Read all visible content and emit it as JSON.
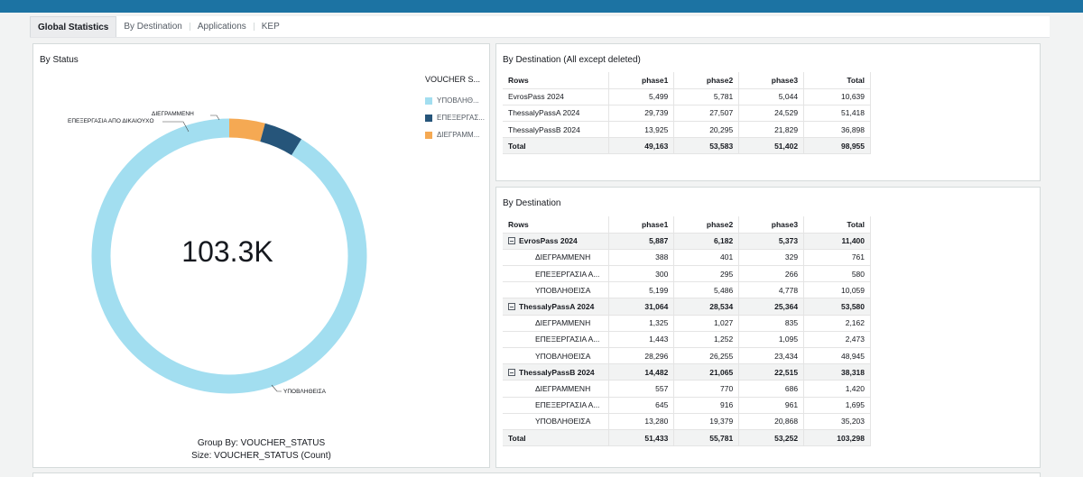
{
  "tabs": [
    "Global Statistics",
    "By Destination",
    "Applications",
    "KEP"
  ],
  "status_panel": {
    "title": "By Status",
    "center_value": "103.3K",
    "legend_title": "VOUCHER S...",
    "legend": [
      {
        "label": "ΥΠΟΒΛΗΘ...",
        "color": "#a2def0"
      },
      {
        "label": "ΕΠΕΞΕΡΓΑΣ...",
        "color": "#26557a"
      },
      {
        "label": "ΔΙΕΓΡΑΜΜ...",
        "color": "#f5a953"
      }
    ],
    "callouts": {
      "deleted": "ΔΙΕΓΡΑΜΜΕΝΗ",
      "processing": "ΕΠΕΞΕΡΓΑΣΙΑ ΑΠΟ ΔΙΚΑΙΟΥΧΟ",
      "submitted": "ΥΠΟΒΛΗΘΕΙΣΑ"
    },
    "footer": [
      "Group By: VOUCHER_STATUS",
      "Size: VOUCHER_STATUS (Count)"
    ]
  },
  "chart_data": {
    "type": "pie",
    "categories": [
      "ΥΠΟΒΛΗΘΕΙΣΑ",
      "ΕΠΕΞΕΡΓΑΣΙΑ ΑΠΟ ΔΙΚΑΙΟΥΧΟ",
      "ΔΙΕΓΡΑΜΜΕΝΗ"
    ],
    "values": [
      94207,
      4748,
      4343
    ],
    "colors": [
      "#a2def0",
      "#26557a",
      "#f5a953"
    ],
    "title": "By Status"
  },
  "table_simple": {
    "title": "By Destination (All except deleted)",
    "headers": [
      "Rows",
      "phase1",
      "phase2",
      "phase3",
      "Total"
    ],
    "rows": [
      [
        "EvrosPass 2024",
        "5,499",
        "5,781",
        "5,044",
        "10,639"
      ],
      [
        "ThessalyPassA 2024",
        "29,739",
        "27,507",
        "24,529",
        "51,418"
      ],
      [
        "ThessalyPassB 2024",
        "13,925",
        "20,295",
        "21,829",
        "36,898"
      ]
    ],
    "total": [
      "Total",
      "49,163",
      "53,583",
      "51,402",
      "98,955"
    ]
  },
  "table_pivot": {
    "title": "By Destination",
    "headers": [
      "Rows",
      "phase1",
      "phase2",
      "phase3",
      "Total"
    ],
    "groups": [
      {
        "label": "EvrosPass 2024",
        "values": [
          "5,887",
          "6,182",
          "5,373",
          "11,400"
        ],
        "children": [
          [
            "ΔΙΕΓΡΑΜΜΕΝΗ",
            "388",
            "401",
            "329",
            "761"
          ],
          [
            "ΕΠΕΞΕΡΓΑΣΙΑ Α...",
            "300",
            "295",
            "266",
            "580"
          ],
          [
            "ΥΠΟΒΛΗΘΕΙΣΑ",
            "5,199",
            "5,486",
            "4,778",
            "10,059"
          ]
        ]
      },
      {
        "label": "ThessalyPassA 2024",
        "values": [
          "31,064",
          "28,534",
          "25,364",
          "53,580"
        ],
        "children": [
          [
            "ΔΙΕΓΡΑΜΜΕΝΗ",
            "1,325",
            "1,027",
            "835",
            "2,162"
          ],
          [
            "ΕΠΕΞΕΡΓΑΣΙΑ Α...",
            "1,443",
            "1,252",
            "1,095",
            "2,473"
          ],
          [
            "ΥΠΟΒΛΗΘΕΙΣΑ",
            "28,296",
            "26,255",
            "23,434",
            "48,945"
          ]
        ]
      },
      {
        "label": "ThessalyPassB 2024",
        "values": [
          "14,482",
          "21,065",
          "22,515",
          "38,318"
        ],
        "children": [
          [
            "ΔΙΕΓΡΑΜΜΕΝΗ",
            "557",
            "770",
            "686",
            "1,420"
          ],
          [
            "ΕΠΕΞΕΡΓΑΣΙΑ Α...",
            "645",
            "916",
            "961",
            "1,695"
          ],
          [
            "ΥΠΟΒΛΗΘΕΙΣΑ",
            "13,280",
            "19,379",
            "20,868",
            "35,203"
          ]
        ]
      }
    ],
    "total": [
      "Total",
      "51,433",
      "55,781",
      "53,252",
      "103,298"
    ]
  }
}
